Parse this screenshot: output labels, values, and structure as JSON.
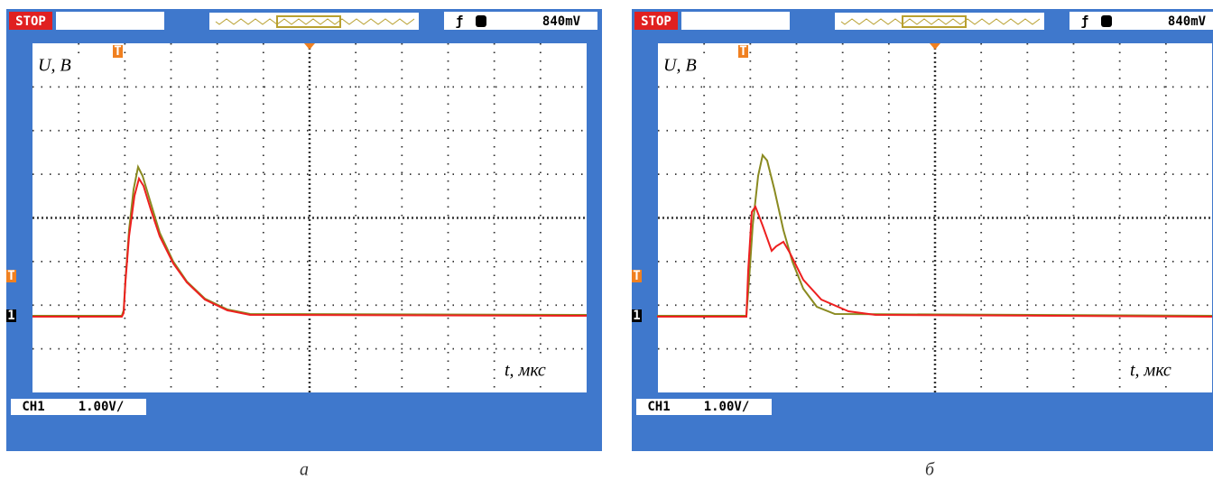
{
  "panels": [
    {
      "status": "STOP",
      "trigger_marker": "T",
      "channel_marker": "1",
      "trigger_level": "840mV",
      "channel": "CH1",
      "scale": "1.00V/",
      "y_label": "U, В",
      "x_label": "t, мкс",
      "caption": "а"
    },
    {
      "status": "STOP",
      "trigger_marker": "T",
      "channel_marker": "1",
      "trigger_level": "840mV",
      "channel": "CH1",
      "scale": "1.00V/",
      "y_label": "U, В",
      "x_label": "t, мкс",
      "caption": "б"
    }
  ]
}
